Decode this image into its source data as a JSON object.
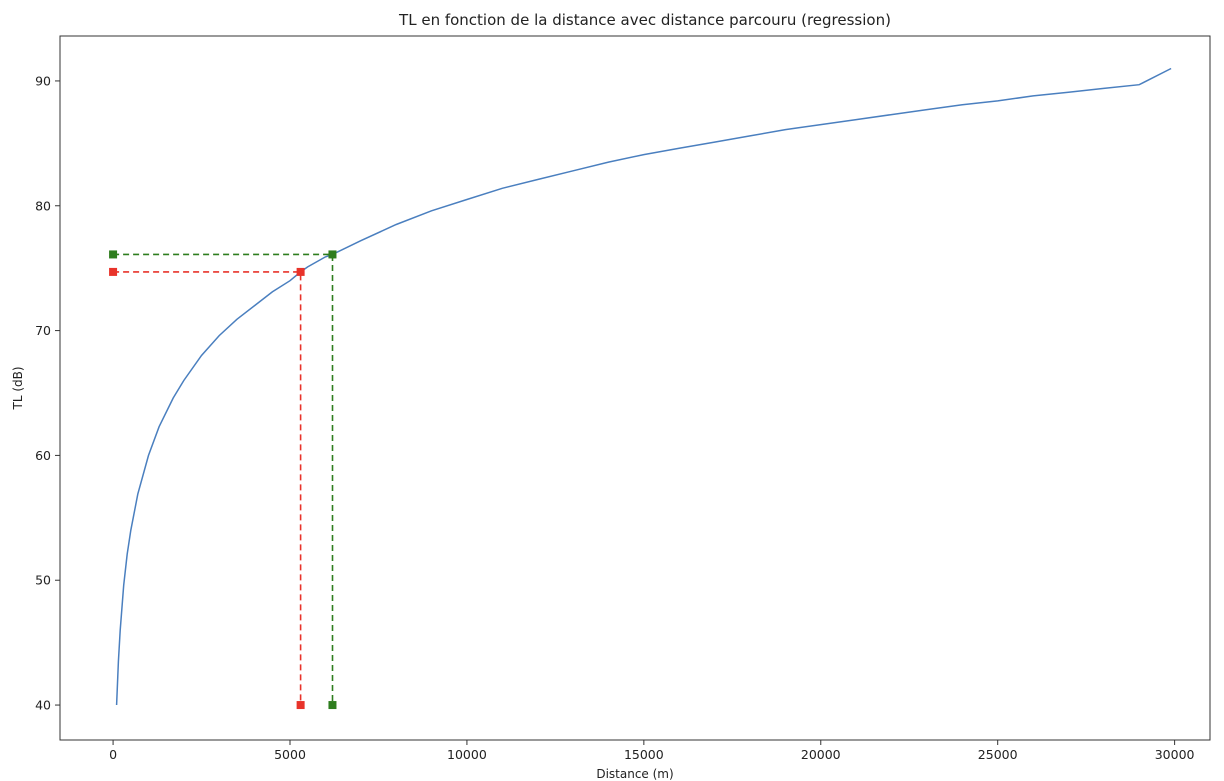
{
  "chart_data": {
    "type": "line",
    "title": "TL en fonction de la distance avec distance parcouru (regression)",
    "xlabel": "Distance (m)",
    "ylabel": "TL (dB)",
    "xlim": [
      -1500,
      31000
    ],
    "ylim": [
      37.2,
      93.6
    ],
    "x_ticks": [
      0,
      5000,
      10000,
      15000,
      20000,
      25000,
      30000
    ],
    "y_ticks": [
      40,
      50,
      60,
      70,
      80,
      90
    ],
    "grid": false,
    "series": [
      {
        "color": "#4a7fbf",
        "style": "solid",
        "x": [
          100,
          150,
          200,
          300,
          400,
          500,
          700,
          1000,
          1300,
          1700,
          2000,
          2500,
          3000,
          3500,
          4000,
          4500,
          5000,
          5300,
          5500,
          6000,
          6200,
          7000,
          8000,
          9000,
          10000,
          11000,
          12000,
          13000,
          14000,
          15000,
          16000,
          17000,
          18000,
          19000,
          20000,
          21000,
          22000,
          23000,
          24000,
          25000,
          26000,
          27000,
          28000,
          29000,
          29900
        ],
        "y": [
          40,
          43.5,
          46,
          49.6,
          52.1,
          54,
          56.9,
          60,
          62.3,
          64.6,
          66,
          68,
          69.6,
          70.9,
          72,
          73.1,
          74,
          74.7,
          75.1,
          75.9,
          76.1,
          77.2,
          78.5,
          79.6,
          80.5,
          81.4,
          82.1,
          82.8,
          83.5,
          84.1,
          84.6,
          85.1,
          85.6,
          86.1,
          86.5,
          86.9,
          87.3,
          87.7,
          88.1,
          88.4,
          88.8,
          89.1,
          89.4,
          89.7,
          91
        ]
      },
      {
        "color": "#e8332a",
        "style": "dashed",
        "x": [
          0,
          5300,
          5300
        ],
        "y": [
          74.7,
          74.7,
          40
        ]
      },
      {
        "color": "#2e7d1e",
        "style": "dashed",
        "x": [
          0,
          6200,
          6200
        ],
        "y": [
          76.1,
          76.1,
          40
        ]
      }
    ]
  }
}
